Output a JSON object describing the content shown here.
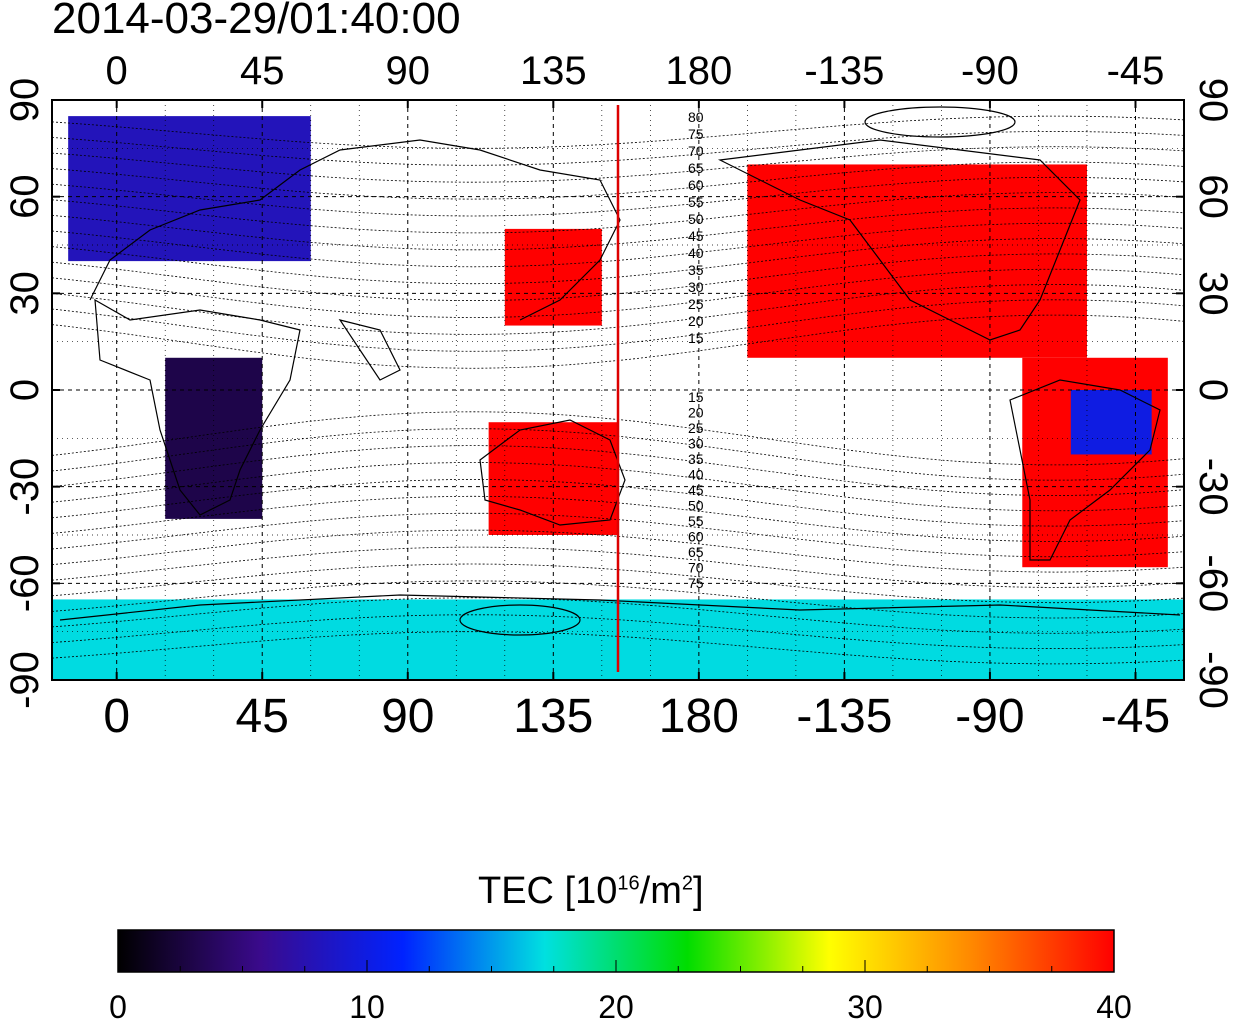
{
  "title": "2014-03-29/01:40:00",
  "colorbar": {
    "label_prefix": "TEC  [10",
    "label_exp1": "16",
    "label_mid": "/m",
    "label_exp2": "2",
    "label_suffix": "]",
    "ticks": [
      "0",
      "10",
      "20",
      "30",
      "40"
    ],
    "min": 0,
    "max": 40,
    "colors": [
      "#000000",
      "#3a0a8c",
      "#0022ff",
      "#00e0e0",
      "#00dd00",
      "#ffff00",
      "#ff8800",
      "#ff0000"
    ]
  },
  "map": {
    "top_lon_labels": [
      "0",
      "45",
      "90",
      "135",
      "180",
      "-135",
      "-90",
      "-45"
    ],
    "bottom_lon_labels": [
      "0",
      "45",
      "90",
      "135",
      "180",
      "-135",
      "-90",
      "-45"
    ],
    "lat_labels": [
      "90",
      "60",
      "30",
      "0",
      "-30",
      "-60",
      "-90"
    ],
    "marker_longitude": 155,
    "marker_color": "#dd0000",
    "contour_labels_north": [
      "80",
      "75",
      "70",
      "65",
      "60",
      "55",
      "50",
      "45",
      "40",
      "35",
      "30",
      "25",
      "20",
      "15"
    ],
    "contour_labels_south": [
      "15",
      "20",
      "25",
      "30",
      "35",
      "40",
      "45",
      "50",
      "55",
      "60",
      "65",
      "70",
      "75"
    ]
  },
  "chart_data": {
    "type": "heatmap",
    "title": "2014-03-29/01:40:00",
    "xlabel": "",
    "ylabel": "",
    "xlim": [
      -20,
      330
    ],
    "ylim": [
      -90,
      90
    ],
    "colorbar_range": [
      0,
      40
    ],
    "colorbar_label": "TEC  [10^16/m^2]",
    "regions": [
      {
        "lon": [
          -15,
          60
        ],
        "lat": [
          40,
          85
        ],
        "tec": 8
      },
      {
        "lon": [
          15,
          45
        ],
        "lat": [
          -40,
          10
        ],
        "tec": 3
      },
      {
        "lon": [
          115,
          155
        ],
        "lat": [
          -45,
          -10
        ],
        "tec": 40
      },
      {
        "lon": [
          120,
          150
        ],
        "lat": [
          20,
          50
        ],
        "tec": 40
      },
      {
        "lon": [
          195,
          300
        ],
        "lat": [
          10,
          70
        ],
        "tec": 40
      },
      {
        "lon": [
          280,
          325
        ],
        "lat": [
          -55,
          10
        ],
        "tec": 40
      },
      {
        "lon": [
          295,
          320
        ],
        "lat": [
          -20,
          0
        ],
        "tec": 10
      },
      {
        "lon": [
          -20,
          330
        ],
        "lat": [
          -90,
          -65
        ],
        "tec": 17
      }
    ]
  }
}
